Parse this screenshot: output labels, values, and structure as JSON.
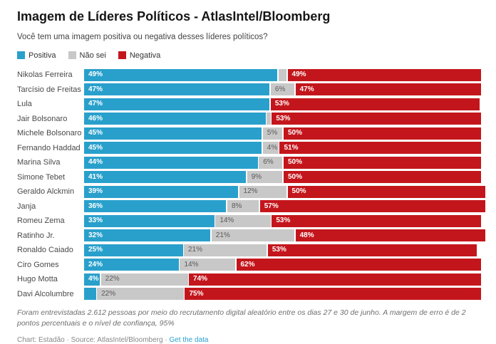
{
  "header": {
    "title": "Imagem de Líderes Políticos - AtlasIntel/Bloomberg",
    "subtitle": "Você tem uma imagem positiva ou negativa desses líderes políticos?"
  },
  "colors": {
    "positive": "#29a0cc",
    "neutral": "#c8c8c8",
    "negative": "#c3161c",
    "link": "#2aa0cf"
  },
  "chart_data": {
    "type": "bar",
    "orientation": "horizontal",
    "stacked": true,
    "unit": "%",
    "grid": false,
    "legend_position": "top-left",
    "categories": [
      "Nikolas Ferreira",
      "Tarcísio de Freitas",
      "Lula",
      "Jair Bolsonaro",
      "Michele Bolsonaro",
      "Fernando Haddad",
      "Marina Silva",
      "Simone Tebet",
      "Geraldo Alckmin",
      "Janja",
      "Romeu Zema",
      "Ratinho Jr.",
      "Ronaldo Caiado",
      "Ciro Gomes",
      "Hugo Motta",
      "Davi Alcolumbre"
    ],
    "series": [
      {
        "key": "positiva",
        "name": "Positiva",
        "color_key": "positive",
        "values": [
          49,
          47,
          47,
          46,
          45,
          45,
          44,
          41,
          39,
          36,
          33,
          32,
          25,
          24,
          4,
          3
        ],
        "labels": [
          "49%",
          "47%",
          "47%",
          "46%",
          "45%",
          "45%",
          "44%",
          "41%",
          "39%",
          "36%",
          "33%",
          "32%",
          "25%",
          "24%",
          "4%",
          ""
        ]
      },
      {
        "key": "nao-sei",
        "name": "Não sei",
        "color_key": "neutral",
        "values": [
          2,
          6,
          0,
          1,
          5,
          4,
          6,
          9,
          12,
          8,
          14,
          21,
          21,
          14,
          22,
          22
        ],
        "labels": [
          "",
          "6%",
          "",
          "",
          "5%",
          "4%",
          "6%",
          "9%",
          "12%",
          "8%",
          "14%",
          "21%",
          "21%",
          "14%",
          "22%",
          "22%"
        ]
      },
      {
        "key": "negativa",
        "name": "Negativa",
        "color_key": "negative",
        "values": [
          49,
          47,
          53,
          53,
          50,
          51,
          50,
          50,
          50,
          57,
          53,
          48,
          53,
          62,
          74,
          75
        ],
        "labels": [
          "49%",
          "47%",
          "53%",
          "53%",
          "50%",
          "51%",
          "50%",
          "50%",
          "50%",
          "57%",
          "53%",
          "48%",
          "53%",
          "62%",
          "74%",
          "75%"
        ]
      }
    ]
  },
  "footer": {
    "note": "Foram entrevistadas 2.612 pessoas por meio do recrutamento digital aleatório entre os dias 27 e 30 de junho. A margem de erro é de 2 pontos percentuais e o nível de confiança, 95%",
    "credit": "Chart: Estadão · Source: AtlasIntel/Bloomberg · ",
    "link_label": "Get the data"
  }
}
